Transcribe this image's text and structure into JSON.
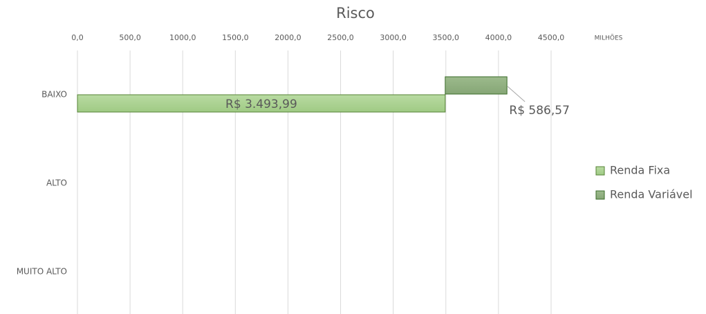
{
  "chart_data": {
    "type": "bar",
    "orientation": "horizontal",
    "stacked": true,
    "title": "Risco",
    "x_unit_label": "MILHÕES",
    "categories": [
      "BAIXO",
      "ALTO",
      "MUITO ALTO"
    ],
    "series": [
      {
        "name": "Renda Fixa",
        "color": "#a9d18e",
        "stroke": "#548235",
        "values": [
          3493.99,
          null,
          null
        ],
        "value_labels": [
          "R$ 3.493,99",
          null,
          null
        ]
      },
      {
        "name": "Renda Variável",
        "color": "#8fae7e",
        "stroke": "#3a6b28",
        "values": [
          586.57,
          null,
          null
        ],
        "value_labels": [
          "R$ 586,57",
          null,
          null
        ]
      }
    ],
    "xlim": [
      0,
      4500
    ],
    "xticks": [
      {
        "value": 0,
        "label": "0,0"
      },
      {
        "value": 500,
        "label": "500,0"
      },
      {
        "value": 1000,
        "label": "1000,0"
      },
      {
        "value": 1500,
        "label": "1500,0"
      },
      {
        "value": 2000,
        "label": "2000,0"
      },
      {
        "value": 2500,
        "label": "2500,0"
      },
      {
        "value": 3000,
        "label": "3000,0"
      },
      {
        "value": 3500,
        "label": "3500,0"
      },
      {
        "value": 4000,
        "label": "4000,0"
      },
      {
        "value": 4500,
        "label": "4500,0"
      }
    ],
    "grid": true,
    "legend": "right"
  }
}
